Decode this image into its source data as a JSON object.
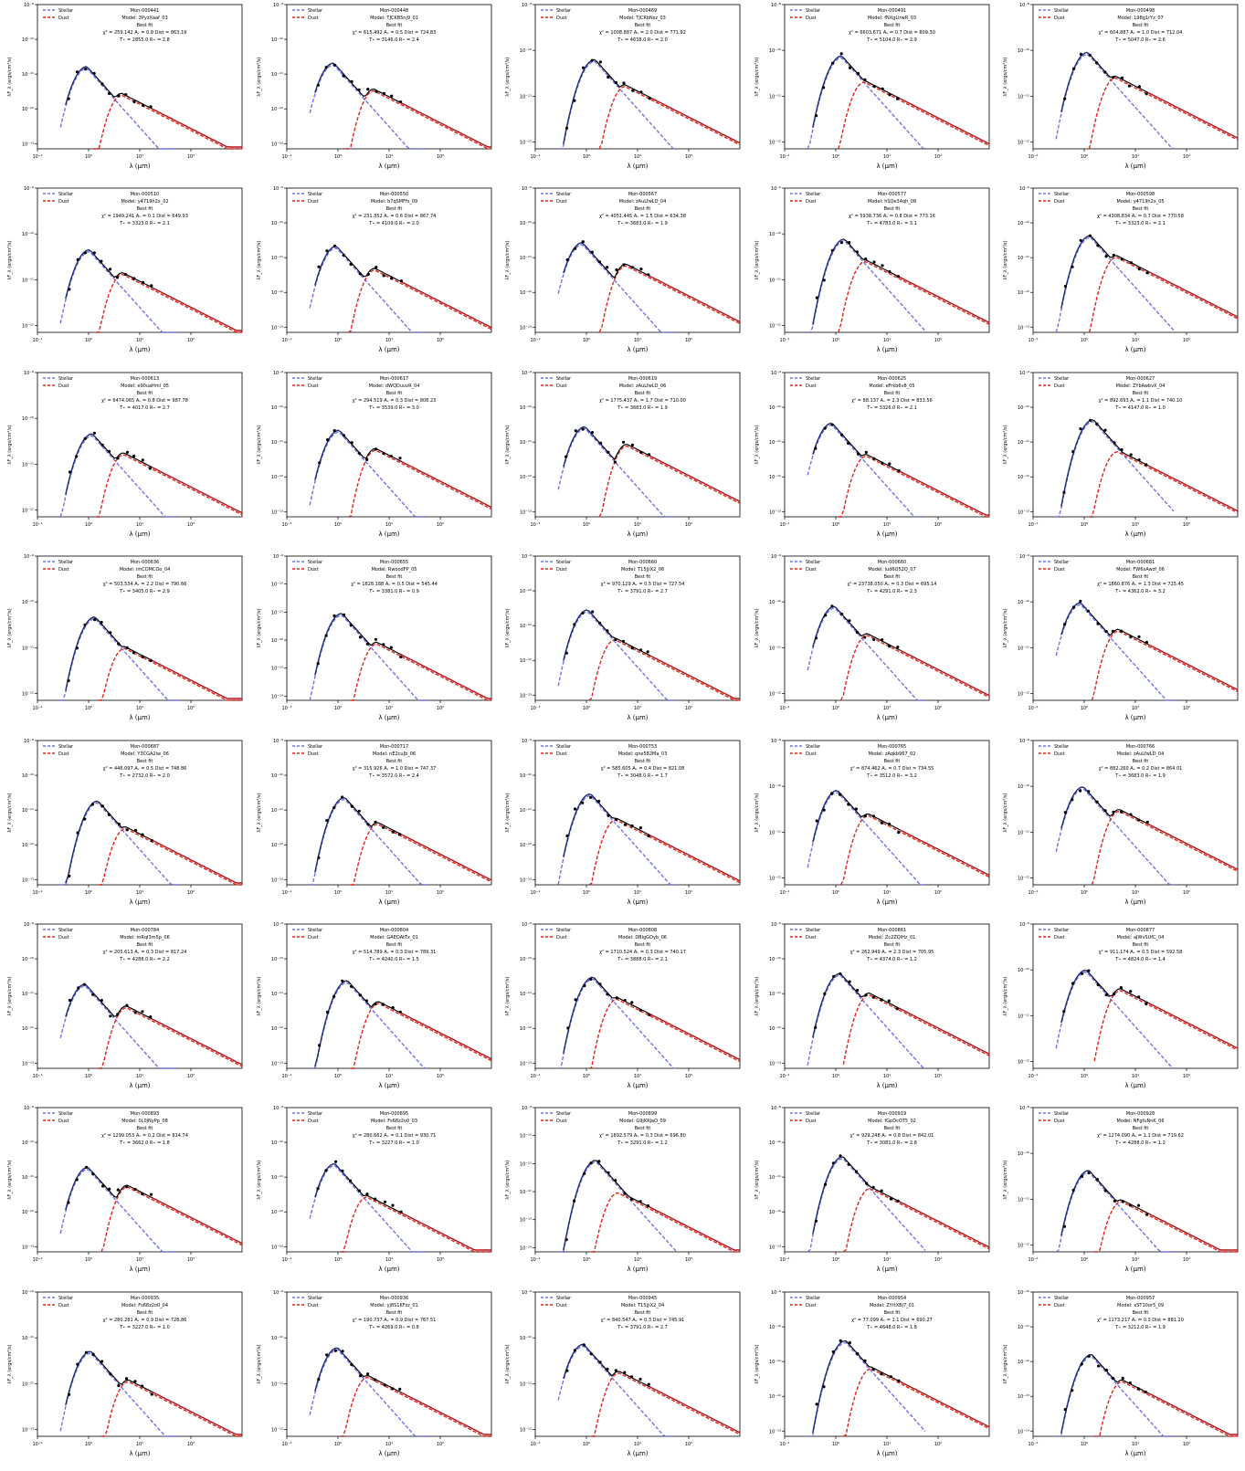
{
  "legend": {
    "stellar": "Stellar",
    "dust": "Dust"
  },
  "colors": {
    "stellar": "#6f73e8",
    "dust": "#e2231a",
    "total": "#000000",
    "stellar_solid": "#1f2a78",
    "dust_solid": "#b0141a",
    "alt_models": "#bdbdbd"
  },
  "axes": {
    "xlabel": "λ (μm)",
    "ylabel": "λF_λ (ergs/cm²/s)",
    "x_ticks": [
      "10⁻¹",
      "10⁰",
      "10¹",
      "10²"
    ],
    "xlim": [
      0.1,
      1000
    ],
    "xscale": "log",
    "yscale": "log"
  },
  "fit_label": "Best fit",
  "chart_data": [
    {
      "type": "line",
      "title": "Mon-000441",
      "model": "Model: 3PyzXaaf_03",
      "chi2": "259.142",
      "av": "0.8",
      "dist": "863.19",
      "tstar": "2855.0",
      "rstar": "2.8",
      "yticks": [
        "10⁻⁹",
        "10⁻¹⁰",
        "10⁻¹¹",
        "10⁻¹²",
        "10⁻¹³"
      ]
    },
    {
      "type": "line",
      "title": "Mon-000448",
      "model": "Model: TJCKB5nj9_01",
      "chi2": "615.492",
      "av": "0.5",
      "dist": "724.83",
      "tstar": "3146.0",
      "rstar": "2.4",
      "yticks": [
        "10⁻⁹",
        "10⁻¹⁰",
        "10⁻¹¹",
        "10⁻¹²",
        "10⁻¹³"
      ]
    },
    {
      "type": "line",
      "title": "Mon-000469",
      "model": "Model: TjCRbNsz_03",
      "chi2": "1008.887",
      "av": "2.0",
      "dist": "771.92",
      "tstar": "4638.0",
      "rstar": "2.0",
      "yticks": [
        "10⁻⁹",
        "10⁻¹⁰",
        "10⁻¹¹",
        "10⁻¹²"
      ]
    },
    {
      "type": "line",
      "title": "Mon-000491",
      "model": "Model: fNXgLIrwR_03",
      "chi2": "6603.671",
      "av": "0.7",
      "dist": "809.30",
      "tstar": "5104.0",
      "rstar": "2.9",
      "yticks": [
        "10⁻⁹",
        "10⁻¹⁰",
        "10⁻¹¹",
        "10⁻¹²"
      ]
    },
    {
      "type": "line",
      "title": "Mon-000498",
      "model": "Model: L98g1rYz_07",
      "chi2": "604.887",
      "av": "1.0",
      "dist": "712.04",
      "tstar": "5047.0",
      "rstar": "2.6",
      "yticks": [
        "10⁻⁹",
        "10⁻¹⁰",
        "10⁻¹¹",
        "10⁻¹²"
      ]
    },
    {
      "type": "line",
      "title": "Mon-000510",
      "model": "Model: y4719h2x_02",
      "chi2": "1949.241",
      "av": "0.1",
      "dist": "649.93",
      "tstar": "3323.0",
      "rstar": "2.1",
      "yticks": [
        "10⁻⁹",
        "10⁻¹⁰",
        "10⁻¹¹",
        "10⁻¹²"
      ]
    },
    {
      "type": "line",
      "title": "Mon-000550",
      "model": "Model: b7qSMFfs_09",
      "chi2": "231.352",
      "av": "0.6",
      "dist": "867.74",
      "tstar": "4109.0",
      "rstar": "2.0",
      "yticks": [
        "10⁻⁹",
        "10⁻¹⁰",
        "10⁻¹¹",
        "10⁻¹²",
        "10⁻¹³"
      ]
    },
    {
      "type": "line",
      "title": "Mon-000567",
      "model": "Model: zAuLfwLD_04",
      "chi2": "4051.445",
      "av": "1.5",
      "dist": "634.38",
      "tstar": "3683.0",
      "rstar": "1.9",
      "yticks": [
        "10⁻⁹",
        "10⁻¹⁰",
        "10⁻¹¹",
        "10⁻¹²",
        "10⁻¹³"
      ]
    },
    {
      "type": "line",
      "title": "Mon-000577",
      "model": "Model: hSQe34qh_08",
      "chi2": "5938.736",
      "av": "0.8",
      "dist": "773.16",
      "tstar": "4783.0",
      "rstar": "3.1",
      "yticks": [
        "10⁻⁹",
        "10⁻¹⁰",
        "10⁻¹¹",
        "10⁻¹²"
      ]
    },
    {
      "type": "line",
      "title": "Mon-000598",
      "model": "Model: y4719h2x_05",
      "chi2": "4308.834",
      "av": "0.7",
      "dist": "770.58",
      "tstar": "3323.0",
      "rstar": "2.1",
      "yticks": [
        "10⁻⁹",
        "10⁻¹⁰",
        "10⁻¹¹",
        "10⁻¹²",
        "10⁻¹³"
      ]
    },
    {
      "type": "line",
      "title": "Mon-000613",
      "model": "Model: e90uaHmi_05",
      "chi2": "6474.065",
      "av": "0.8",
      "dist": "987.78",
      "tstar": "4017.0",
      "rstar": "2.7",
      "yticks": [
        "10⁻⁹",
        "10⁻¹⁰",
        "10⁻¹¹",
        "10⁻¹²"
      ]
    },
    {
      "type": "line",
      "title": "Mon-000617",
      "model": "Model: dWQDuuvR_04",
      "chi2": "294.519",
      "av": "0.3",
      "dist": "808.23",
      "tstar": "3539.0",
      "rstar": "3.0",
      "yticks": [
        "10⁻⁹",
        "10⁻¹⁰",
        "10⁻¹¹",
        "10⁻¹²",
        "10⁻¹³"
      ]
    },
    {
      "type": "line",
      "title": "Mon-000619",
      "model": "Model: zAuLfwLD_06",
      "chi2": "1775.437",
      "av": "1.7",
      "dist": "710.00",
      "tstar": "3683.0",
      "rstar": "1.9",
      "yticks": [
        "10⁻⁹",
        "10⁻¹⁰",
        "10⁻¹¹",
        "10⁻¹²",
        "10⁻¹³"
      ]
    },
    {
      "type": "line",
      "title": "Mon-000625",
      "model": "Model: eFrkb6v8_05",
      "chi2": "88.137",
      "av": "2.3",
      "dist": "833.56",
      "tstar": "3326.0",
      "rstar": "2.1",
      "yticks": [
        "10⁻⁹",
        "10⁻¹⁰",
        "10⁻¹¹",
        "10⁻¹²",
        "10⁻¹³"
      ]
    },
    {
      "type": "line",
      "title": "Mon-000627",
      "model": "Model: ZYbAwbvX_04",
      "chi2": "892.693",
      "av": "1.1",
      "dist": "740.10",
      "tstar": "4147.0",
      "rstar": "1.0",
      "yticks": [
        "10⁻⁹",
        "10⁻¹⁰",
        "10⁻¹¹",
        "10⁻¹²",
        "10⁻¹³"
      ]
    },
    {
      "type": "line",
      "title": "Mon-000636",
      "model": "Model: imCOMCOo_04",
      "chi2": "503.534",
      "av": "2.2",
      "dist": "790.66",
      "tstar": "3405.0",
      "rstar": "2.9",
      "yticks": [
        "10⁻⁹",
        "10⁻¹⁰",
        "10⁻¹¹",
        "10⁻¹²"
      ]
    },
    {
      "type": "line",
      "title": "Mon-000655",
      "model": "Model: RwoodFP_05",
      "chi2": "1828.188",
      "av": "0.5",
      "dist": "545.44",
      "tstar": "3381.0",
      "rstar": "0.9",
      "yticks": [
        "10⁻⁹",
        "10⁻¹⁰",
        "10⁻¹¹",
        "10⁻¹²",
        "10⁻¹³",
        "10⁻¹⁴"
      ]
    },
    {
      "type": "line",
      "title": "Mon-000660",
      "model": "Model: T15jjiX2_06",
      "chi2": "970.129",
      "av": "0.5",
      "dist": "727.54",
      "tstar": "3791.0",
      "rstar": "2.7",
      "yticks": [
        "10⁻⁹",
        "10⁻¹⁰",
        "10⁻¹¹",
        "10⁻¹²",
        "10⁻¹³"
      ]
    },
    {
      "type": "line",
      "title": "Mon-000660",
      "model": "Model: lud6Q52Q_07",
      "chi2": "23738.050",
      "av": "0.3",
      "dist": "695.14",
      "tstar": "4291.0",
      "rstar": "2.3",
      "yticks": [
        "10⁻⁹",
        "10⁻¹⁰",
        "10⁻¹¹",
        "10⁻¹²"
      ]
    },
    {
      "type": "line",
      "title": "Mon-000681",
      "model": "Model: FW6xAwzf_06",
      "chi2": "1860.876",
      "av": "1.3",
      "dist": "725.45",
      "tstar": "4362.0",
      "rstar": "3.2",
      "yticks": [
        "10⁻⁹",
        "10⁻¹⁰",
        "10⁻¹¹",
        "10⁻¹²"
      ]
    },
    {
      "type": "line",
      "title": "Mon-000687",
      "model": "Model: Y3CGA2iw_06",
      "chi2": "446.097",
      "av": "0.5",
      "dist": "748.86",
      "tstar": "2732.0",
      "rstar": "2.0",
      "yticks": [
        "10⁻⁹",
        "10⁻¹⁰",
        "10⁻¹¹",
        "10⁻¹²",
        "10⁻¹³"
      ]
    },
    {
      "type": "line",
      "title": "Mon-000717",
      "model": "Model: nE2cuJb_06",
      "chi2": "315.926",
      "av": "1.0",
      "dist": "747.37",
      "tstar": "3572.0",
      "rstar": "2.4",
      "yticks": [
        "10⁻⁹",
        "10⁻¹⁰",
        "10⁻¹¹",
        "10⁻¹²",
        "10⁻¹³"
      ]
    },
    {
      "type": "line",
      "title": "Mon-000753",
      "model": "Model: qne582Ma_03",
      "chi2": "585.605",
      "av": "0.4",
      "dist": "821.08",
      "tstar": "3048.0",
      "rstar": "1.7",
      "yticks": [
        "10⁻⁹",
        "10⁻¹⁰",
        "10⁻¹¹",
        "10⁻¹²",
        "10⁻¹³"
      ]
    },
    {
      "type": "line",
      "title": "Mon-000765",
      "model": "Model: zAqkb967_02",
      "chi2": "874.462",
      "av": "0.7",
      "dist": "734.55",
      "tstar": "3512.0",
      "rstar": "3.2",
      "yticks": [
        "10⁻⁹",
        "10⁻¹⁰",
        "10⁻¹¹",
        "10⁻¹²"
      ]
    },
    {
      "type": "line",
      "title": "Mon-000766",
      "model": "Model: zAuLfwLD_04",
      "chi2": "882.260",
      "av": "0.2",
      "dist": "864.01",
      "tstar": "3683.0",
      "rstar": "1.9",
      "yticks": [
        "10⁻⁹",
        "10⁻¹⁰",
        "10⁻¹¹",
        "10⁻¹²"
      ]
    },
    {
      "type": "line",
      "title": "Mon-000784",
      "model": "Model: mRqI3m5p_06",
      "chi2": "205.613",
      "av": "0.3",
      "dist": "817.24",
      "tstar": "4288.0",
      "rstar": "2.2",
      "yticks": [
        "10⁻⁹",
        "10⁻¹⁰",
        "10⁻¹¹",
        "10⁻¹²",
        "10⁻¹³"
      ]
    },
    {
      "type": "line",
      "title": "Mon-000804",
      "model": "Model: GAEOAtTx_01",
      "chi2": "514.789",
      "av": "0.3",
      "dist": "789.31",
      "tstar": "4240.0",
      "rstar": "1.5",
      "yticks": [
        "10⁻⁹",
        "10⁻¹⁰",
        "10⁻¹¹",
        "10⁻¹²",
        "10⁻¹³"
      ]
    },
    {
      "type": "line",
      "title": "Mon-000808",
      "model": "Model: DBlgGOyb_06",
      "chi2": "1710.524",
      "av": "0.3",
      "dist": "740.17",
      "tstar": "3888.0",
      "rstar": "2.1",
      "yticks": [
        "10⁻⁹",
        "10⁻¹⁰",
        "10⁻¹¹",
        "10⁻¹²",
        "10⁻¹³"
      ]
    },
    {
      "type": "line",
      "title": "Mon-000861",
      "model": "Model: Zc2ZQlHz_01",
      "chi2": "262.949",
      "av": "2.3",
      "dist": "705.95",
      "tstar": "4374.0",
      "rstar": "1.2",
      "yticks": [
        "10⁻⁹",
        "10⁻¹⁰",
        "10⁻¹¹",
        "10⁻¹²",
        "10⁻¹³"
      ]
    },
    {
      "type": "line",
      "title": "Mon-000877",
      "model": "Model: aJWvSUfC_04",
      "chi2": "911.174",
      "av": "0.5",
      "dist": "592.58",
      "tstar": "4824.0",
      "rstar": "1.4",
      "yticks": [
        "10⁻⁹",
        "10⁻¹⁰",
        "10⁻¹¹",
        "10⁻¹²"
      ]
    },
    {
      "type": "line",
      "title": "Mon-000893",
      "model": "Model: 0L0jNyPp_08",
      "chi2": "1299.053",
      "av": "0.2",
      "dist": "814.74",
      "tstar": "3662.0",
      "rstar": "1.8",
      "yticks": [
        "10⁻⁹",
        "10⁻¹⁰",
        "10⁻¹¹",
        "10⁻¹²",
        "10⁻¹³"
      ]
    },
    {
      "type": "line",
      "title": "Mon-000895",
      "model": "Model: Fs68z2o0_03",
      "chi2": "280.662",
      "av": "0.1",
      "dist": "930.71",
      "tstar": "3227.0",
      "rstar": "1.0",
      "yticks": [
        "10⁻⁹",
        "10⁻¹⁰",
        "10⁻¹¹",
        "10⁻¹²",
        "10⁻¹³"
      ]
    },
    {
      "type": "line",
      "title": "Mon-000899",
      "model": "Model: G9jKRJaO_09",
      "chi2": "1892.579",
      "av": "0.3",
      "dist": "696.80",
      "tstar": "3291.0",
      "rstar": "1.2",
      "yticks": [
        "10⁻⁹",
        "10⁻¹⁰",
        "10⁻¹¹",
        "10⁻¹²",
        "10⁻¹³",
        "10⁻¹⁴"
      ]
    },
    {
      "type": "line",
      "title": "Mon-000919",
      "model": "Model: fGpDcOT5_02",
      "chi2": "929.248",
      "av": "0.8",
      "dist": "842.01",
      "tstar": "3081.0",
      "rstar": "2.8",
      "yticks": [
        "10⁻⁹",
        "10⁻¹⁰",
        "10⁻¹¹",
        "10⁻¹²",
        "10⁻¹³"
      ]
    },
    {
      "type": "line",
      "title": "Mon-000928",
      "model": "Model: NFgfuNnK_06",
      "chi2": "1274.090",
      "av": "1.1",
      "dist": "719.62",
      "tstar": "4288.0",
      "rstar": "1.2",
      "yticks": [
        "10⁻⁹",
        "10⁻¹⁰",
        "10⁻¹¹",
        "10⁻¹²"
      ]
    },
    {
      "type": "line",
      "title": "Mon-000935",
      "model": "Model: Fs68z2o0_04",
      "chi2": "280.281",
      "av": "0.9",
      "dist": "728.86",
      "tstar": "3227.0",
      "rstar": "1.0",
      "yticks": [
        "10⁻¹⁰",
        "10⁻¹¹",
        "10⁻¹²",
        "10⁻¹³"
      ]
    },
    {
      "type": "line",
      "title": "Mon-000936",
      "model": "Model: yj8S1KFzz_01",
      "chi2": "190.737",
      "av": "0.9",
      "dist": "767.51",
      "tstar": "4269.0",
      "rstar": "0.8",
      "yticks": [
        "10⁻⁹",
        "10⁻¹⁰",
        "10⁻¹¹",
        "10⁻¹²"
      ]
    },
    {
      "type": "line",
      "title": "Mon-000945",
      "model": "Model: T15jjiX2_04",
      "chi2": "840.547",
      "av": "0.3",
      "dist": "745.91",
      "tstar": "3791.0",
      "rstar": "2.7",
      "yticks": [
        "10⁻⁹",
        "10⁻¹⁰",
        "10⁻¹¹",
        "10⁻¹²"
      ]
    },
    {
      "type": "line",
      "title": "Mon-000954",
      "model": "Model: ZYrtXBj7_01",
      "chi2": "77.099",
      "av": "1.1",
      "dist": "690.27",
      "tstar": "4648.0",
      "rstar": "1.8",
      "yticks": [
        "10⁻⁹",
        "10⁻¹⁰",
        "10⁻¹¹",
        "10⁻¹²",
        "10⁻¹³"
      ]
    },
    {
      "type": "line",
      "title": "Mon-000957",
      "model": "Model: xST10or5_09",
      "chi2": "1173.217",
      "av": "0.3",
      "dist": "881.20",
      "tstar": "3212.0",
      "rstar": "1.9",
      "yticks": [
        "10⁻¹⁰",
        "10⁻¹¹",
        "10⁻¹²",
        "10⁻¹³",
        "10⁻¹⁴"
      ]
    }
  ]
}
